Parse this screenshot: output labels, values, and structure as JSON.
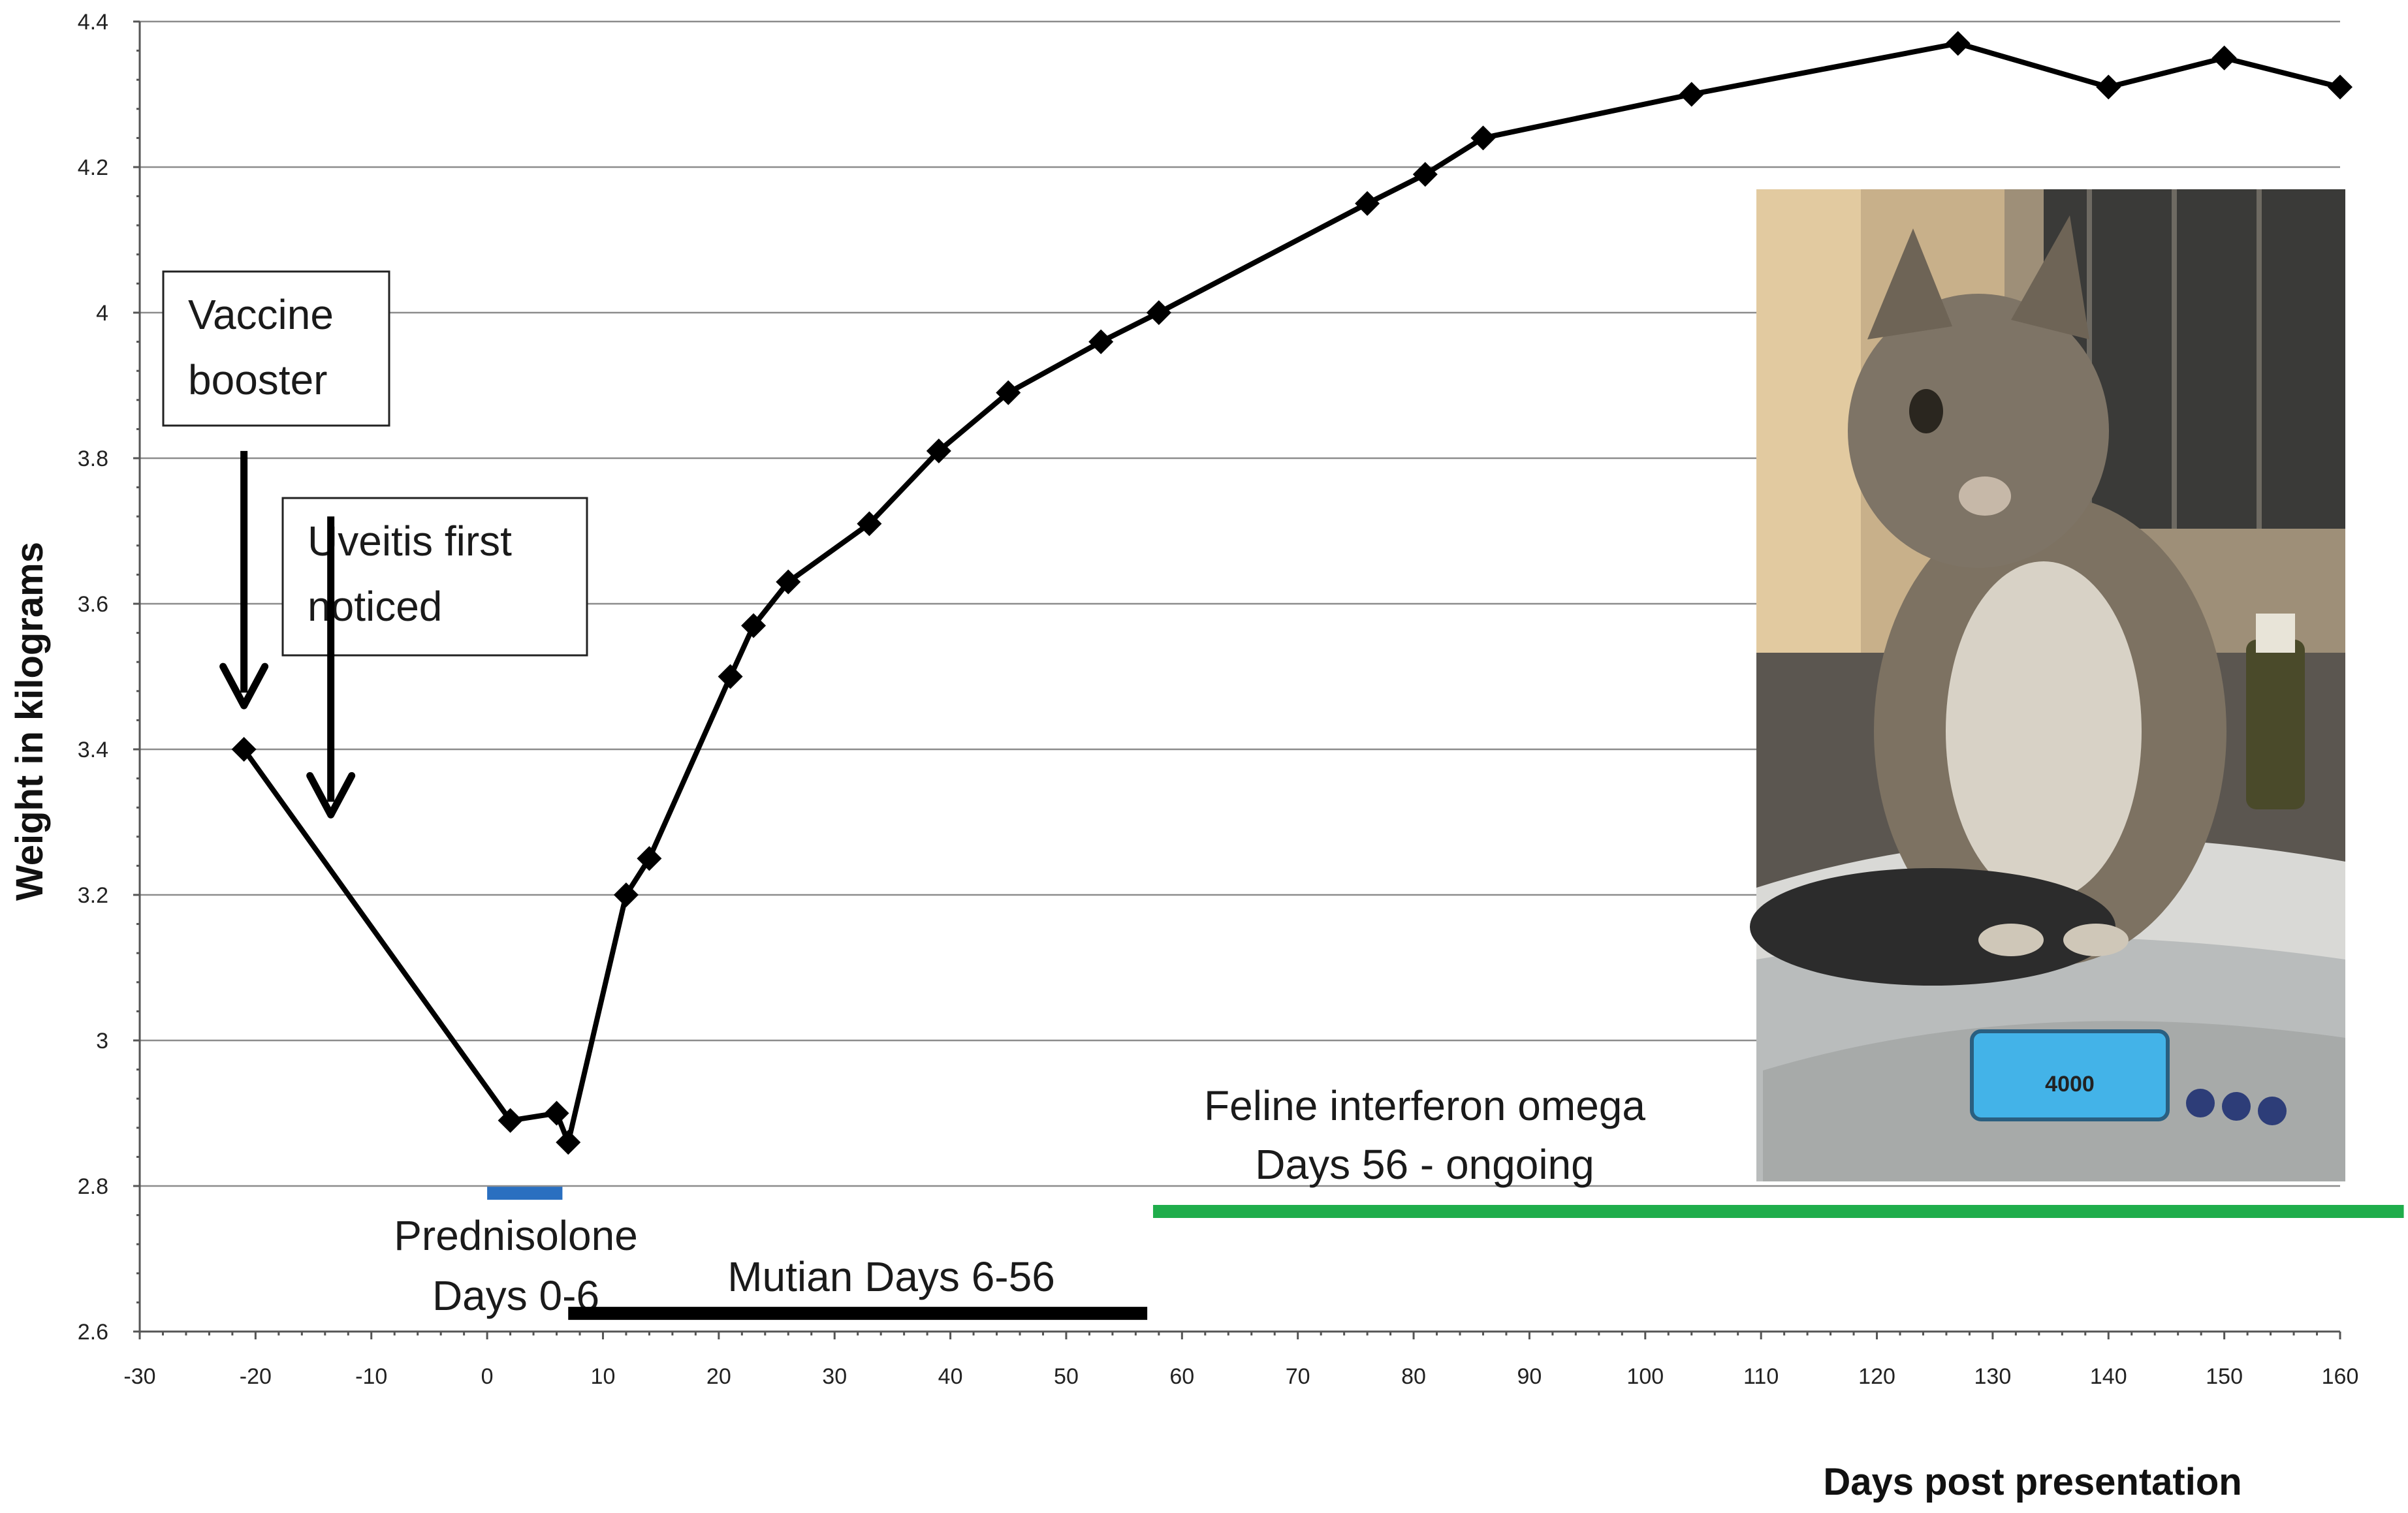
{
  "chart_data": {
    "type": "line",
    "xlabel": "Days post presentation",
    "ylabel": "Weight in kilograms",
    "xlim": [
      -30,
      160
    ],
    "ylim": [
      2.6,
      4.4
    ],
    "xticks": [
      -30,
      -20,
      -10,
      0,
      10,
      20,
      30,
      40,
      50,
      60,
      70,
      80,
      90,
      100,
      110,
      120,
      130,
      140,
      150,
      160
    ],
    "yticks": [
      "2.6",
      "2.8",
      "3",
      "3.2",
      "3.4",
      "3.6",
      "3.8",
      "4",
      "4.2",
      "4.4"
    ],
    "grid": "horizontal",
    "series": [
      {
        "points": [
          [
            -21,
            3.4
          ],
          [
            2,
            2.89
          ],
          [
            6,
            2.9
          ],
          [
            7,
            2.86
          ],
          [
            12,
            3.2
          ],
          [
            14,
            3.25
          ],
          [
            21,
            3.5
          ],
          [
            23,
            3.57
          ],
          [
            26,
            3.63
          ],
          [
            33,
            3.71
          ],
          [
            39,
            3.81
          ],
          [
            45,
            3.89
          ],
          [
            53,
            3.96
          ],
          [
            58,
            4.0
          ],
          [
            76,
            4.15
          ],
          [
            81,
            4.19
          ],
          [
            86,
            4.24
          ],
          [
            104,
            4.3
          ],
          [
            127,
            4.37
          ],
          [
            140,
            4.31
          ],
          [
            150,
            4.35
          ],
          [
            160,
            4.31
          ]
        ]
      }
    ],
    "annotations": [
      {
        "name": "vaccine-booster",
        "lines": [
          "Vaccine",
          "booster"
        ],
        "boxed": true,
        "arrow_x": -21,
        "arrow_y_top": 3.81,
        "arrow_y_tip": 3.46
      },
      {
        "name": "uveitis-first-noticed",
        "lines": [
          "Uveitis first",
          "noticed"
        ],
        "boxed": true,
        "arrow_x": -13.5,
        "arrow_y_top": 3.72,
        "arrow_y_tip": 3.31
      }
    ],
    "treatments": [
      {
        "name": "prednisolone",
        "lines": [
          "Prednisolone",
          "Days 0-6"
        ],
        "x_start": 0,
        "x_end": 6.5,
        "y": 2.79,
        "color": "#2a6fc0"
      },
      {
        "name": "mutian",
        "lines": [
          "Mutian Days 6-56"
        ],
        "x_start": 7,
        "x_end": 57,
        "y": 2.625,
        "color": "#000000"
      },
      {
        "name": "feline-interferon-omega",
        "lines": [
          "Feline interferon omega",
          "Days 56 - ongoing"
        ],
        "x_start": 57.5,
        "x_end": 165.5,
        "y": 2.765,
        "color": "#1fad4b"
      }
    ],
    "photo": {
      "subject": "tabby kitten sitting on a digital baby scale",
      "scale_display": "4000"
    }
  }
}
